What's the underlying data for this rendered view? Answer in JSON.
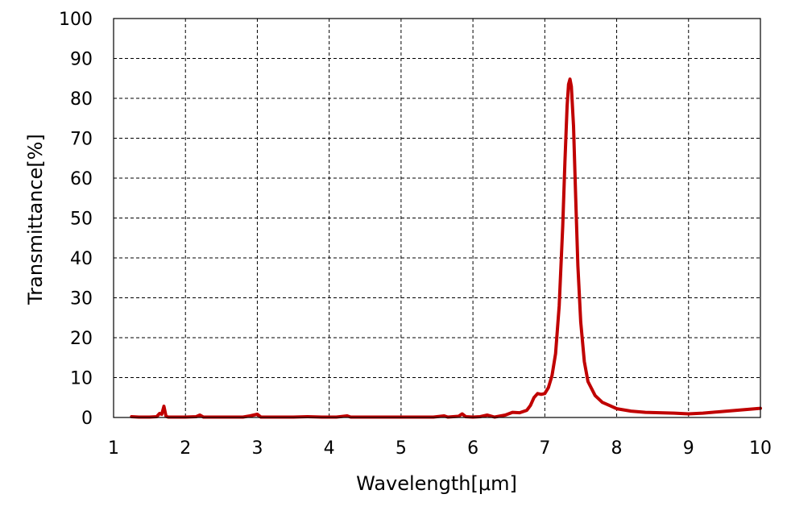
{
  "chart_data": {
    "type": "line",
    "title": "",
    "xlabel": "Wavelength[μm]",
    "ylabel": "Transmittance[%]",
    "xlim": [
      1,
      10
    ],
    "ylim": [
      0,
      100
    ],
    "xticks": [
      1,
      2,
      3,
      4,
      5,
      6,
      7,
      8,
      9,
      10
    ],
    "yticks": [
      0,
      10,
      20,
      30,
      40,
      50,
      60,
      70,
      80,
      90,
      100
    ],
    "grid": true,
    "line_color": "#c00000",
    "series": [
      {
        "x": [
          1.25,
          1.35,
          1.5,
          1.6,
          1.64,
          1.67,
          1.7,
          1.73,
          1.76,
          1.85,
          2.0,
          2.15,
          2.2,
          2.25,
          2.4,
          2.6,
          2.8,
          2.9,
          3.0,
          3.05,
          3.2,
          3.5,
          3.7,
          3.9,
          4.1,
          4.25,
          4.3,
          4.5,
          5.0,
          5.45,
          5.55,
          5.6,
          5.65,
          5.8,
          5.85,
          5.9,
          6.0,
          6.1,
          6.2,
          6.3,
          6.45,
          6.55,
          6.65,
          6.75,
          6.8,
          6.85,
          6.9,
          6.95,
          7.0,
          7.05,
          7.1,
          7.15,
          7.2,
          7.25,
          7.28,
          7.31,
          7.33,
          7.35,
          7.37,
          7.4,
          7.43,
          7.46,
          7.5,
          7.55,
          7.6,
          7.7,
          7.8,
          7.9,
          8.0,
          8.2,
          8.4,
          8.6,
          8.8,
          9.0,
          9.2,
          9.4,
          9.6,
          9.8,
          10.0
        ],
        "y": [
          0.2,
          0.1,
          0.1,
          0.2,
          1.0,
          0.8,
          2.8,
          0.3,
          0.1,
          0.1,
          0.1,
          0.2,
          0.6,
          0.1,
          0.1,
          0.1,
          0.1,
          0.4,
          0.8,
          0.1,
          0.1,
          0.1,
          0.2,
          0.1,
          0.1,
          0.4,
          0.1,
          0.1,
          0.1,
          0.1,
          0.3,
          0.4,
          0.1,
          0.3,
          0.9,
          0.2,
          0.1,
          0.2,
          0.6,
          0.1,
          0.6,
          1.3,
          1.2,
          1.8,
          3.0,
          5.0,
          6.0,
          5.8,
          6.0,
          7.5,
          10.5,
          16.0,
          28.0,
          48.0,
          64.0,
          78.0,
          83.5,
          84.8,
          83.0,
          73.0,
          55.0,
          38.0,
          24.0,
          14.0,
          9.0,
          5.5,
          3.8,
          3.0,
          2.2,
          1.6,
          1.3,
          1.2,
          1.1,
          0.9,
          1.1,
          1.4,
          1.7,
          2.0,
          2.3
        ]
      }
    ]
  }
}
